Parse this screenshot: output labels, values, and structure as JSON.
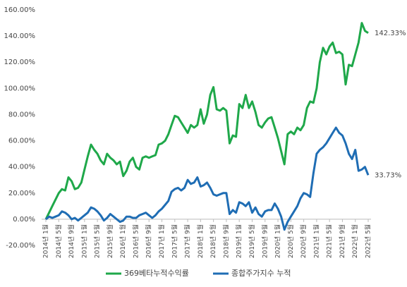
{
  "chart_data": {
    "type": "line",
    "categories": [
      "2014년 1월",
      null,
      null,
      null,
      "2014년 5월",
      null,
      null,
      null,
      "2014년 9월",
      null,
      null,
      null,
      "2015년 1월",
      null,
      null,
      null,
      "2015년 5월",
      null,
      null,
      null,
      "2015년 9월",
      null,
      null,
      null,
      "2016년 1월",
      null,
      null,
      null,
      "2016년 5월",
      null,
      null,
      null,
      "2016년 9월",
      null,
      null,
      null,
      "2017년 1월",
      null,
      null,
      null,
      "2017년 5월",
      null,
      null,
      null,
      "2017년 9월",
      null,
      null,
      null,
      "2018년 1월",
      null,
      null,
      null,
      "2018년 5월",
      null,
      null,
      null,
      "2018년 9월",
      null,
      null,
      null,
      "2019년 1월",
      null,
      null,
      null,
      "2019년 5월",
      null,
      null,
      null,
      "2019년 9월",
      null,
      null,
      null,
      "2020년 1월",
      null,
      null,
      null,
      "2020년 5월",
      null,
      null,
      null,
      "2020년 9월",
      null,
      null,
      null,
      "2021년 1월",
      null,
      null,
      null,
      "2021년 5월",
      null,
      null,
      null,
      "2021년 9월",
      null,
      null,
      null,
      "2022년 1월",
      null,
      null,
      null,
      "2022년 5월"
    ],
    "series": [
      {
        "name": "369베타누적수익률",
        "color": "#1fa84a",
        "values": [
          0,
          5,
          10,
          15,
          20,
          23,
          22,
          32,
          29,
          23,
          24,
          28,
          38,
          48,
          57,
          53,
          50,
          45,
          42,
          50,
          47,
          45,
          42,
          44,
          33,
          37,
          44,
          47,
          40,
          38,
          47,
          48,
          47,
          48,
          49,
          57,
          58,
          60,
          65,
          72,
          79,
          78,
          74,
          70,
          66,
          72,
          70,
          72,
          84,
          73,
          80,
          95,
          101,
          84,
          83,
          85,
          83,
          58,
          64,
          63,
          88,
          85,
          95,
          85,
          90,
          82,
          72,
          70,
          74,
          77,
          78,
          70,
          62,
          52,
          42,
          65,
          67,
          65,
          70,
          68,
          72,
          85,
          90,
          89,
          100,
          120,
          131,
          126,
          132,
          135,
          127,
          128,
          126,
          103,
          118,
          117,
          126,
          135,
          150,
          144,
          142.33
        ],
        "value_labels": [
          null,
          null,
          null,
          null,
          null,
          null,
          null,
          null,
          null,
          null,
          null,
          null,
          null,
          null,
          null,
          null,
          null,
          null,
          null,
          null,
          null,
          null,
          null,
          null,
          null,
          null,
          null,
          null,
          null,
          null,
          null,
          null,
          null,
          null,
          null,
          null,
          null,
          null,
          null,
          null,
          null,
          null,
          null,
          null,
          null,
          null,
          null,
          null,
          null,
          null,
          null,
          null,
          null,
          null,
          null,
          null,
          null,
          null,
          null,
          null,
          null,
          null,
          null,
          null,
          null,
          null,
          null,
          null,
          null,
          null,
          null,
          null,
          null,
          null,
          null,
          null,
          null,
          null,
          null,
          null,
          null,
          null,
          null,
          null,
          null,
          null,
          null,
          null,
          null,
          null,
          null,
          null,
          null,
          null,
          null,
          null,
          null,
          null,
          null,
          null,
          "142.33%"
        ]
      },
      {
        "name": "종합주가지수 누적",
        "color": "#1f6db4",
        "values": [
          0,
          2,
          1,
          2,
          3,
          6,
          5,
          3,
          0,
          1,
          -1,
          1,
          3,
          5,
          9,
          8,
          6,
          3,
          -1,
          1,
          4,
          2,
          0,
          -2,
          -1,
          2,
          2,
          1,
          1,
          3,
          4,
          5,
          3,
          1,
          3,
          6,
          8,
          11,
          14,
          21,
          23,
          24,
          22,
          24,
          30,
          27,
          28,
          32,
          25,
          26,
          28,
          24,
          19,
          18,
          19,
          20,
          20,
          4,
          7,
          5,
          13,
          12,
          10,
          13,
          5,
          9,
          4,
          2,
          6,
          7,
          7,
          12,
          8,
          2,
          -8,
          -2,
          2,
          6,
          10,
          16,
          20,
          19,
          17,
          35,
          50,
          53,
          55,
          58,
          62,
          66,
          70,
          66,
          64,
          58,
          50,
          46,
          53,
          37,
          38,
          40,
          33.73
        ],
        "value_labels": [
          null,
          null,
          null,
          null,
          null,
          null,
          null,
          null,
          null,
          null,
          null,
          null,
          null,
          null,
          null,
          null,
          null,
          null,
          null,
          null,
          null,
          null,
          null,
          null,
          null,
          null,
          null,
          null,
          null,
          null,
          null,
          null,
          null,
          null,
          null,
          null,
          null,
          null,
          null,
          null,
          null,
          null,
          null,
          null,
          null,
          null,
          null,
          null,
          null,
          null,
          null,
          null,
          null,
          null,
          null,
          null,
          null,
          null,
          null,
          null,
          null,
          null,
          null,
          null,
          null,
          null,
          null,
          null,
          null,
          null,
          null,
          null,
          null,
          null,
          null,
          null,
          null,
          null,
          null,
          null,
          null,
          null,
          null,
          null,
          null,
          null,
          null,
          null,
          null,
          null,
          null,
          null,
          null,
          null,
          null,
          null,
          null,
          null,
          null,
          null,
          "33.73%"
        ]
      }
    ],
    "ylim": [
      -20,
      160
    ],
    "yticks": [
      {
        "value": -20,
        "label": "-20.00%"
      },
      {
        "value": 0,
        "label": "0.00%"
      },
      {
        "value": 20,
        "label": "20.00%"
      },
      {
        "value": 40,
        "label": "40.00%"
      },
      {
        "value": 60,
        "label": "60.00%"
      },
      {
        "value": 80,
        "label": "80.00%"
      },
      {
        "value": 100,
        "label": "100.00%"
      },
      {
        "value": 120,
        "label": "120.00%"
      },
      {
        "value": 140,
        "label": "140.00%"
      },
      {
        "value": 160,
        "label": "160.00%"
      }
    ],
    "grid": false,
    "legend": "bottom"
  }
}
